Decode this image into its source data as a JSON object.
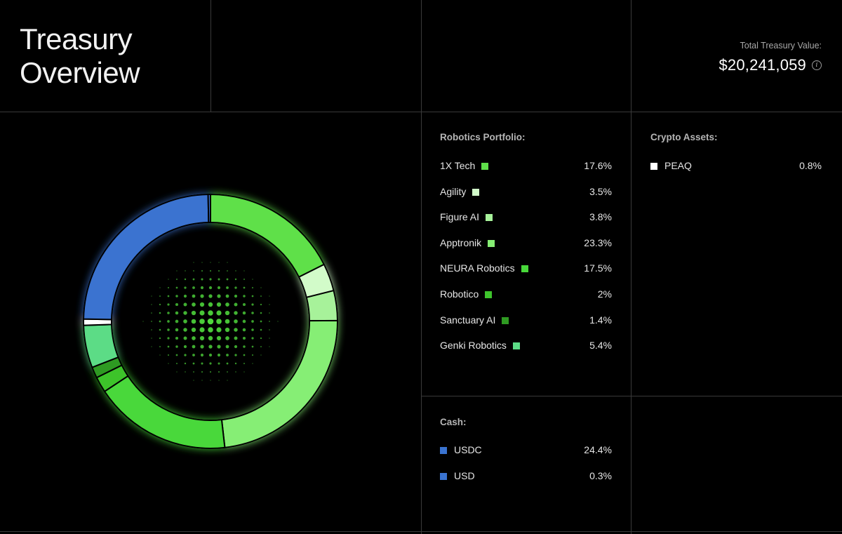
{
  "header": {
    "title_line1": "Treasury",
    "title_line2": "Overview",
    "total_label": "Total Treasury Value:",
    "total_value": "$20,241,059",
    "info_icon": "info-icon"
  },
  "robotics": {
    "title": "Robotics Portfolio:",
    "items": [
      {
        "name": "1X Tech",
        "pct": "17.6%",
        "color": "#5fe04a"
      },
      {
        "name": "Agility",
        "pct": "3.5%",
        "color": "#d2fbc9"
      },
      {
        "name": "Figure AI",
        "pct": "3.8%",
        "color": "#a7f29a"
      },
      {
        "name": "Apptronik",
        "pct": "23.3%",
        "color": "#86ee74"
      },
      {
        "name": "NEURA Robotics",
        "pct": "17.5%",
        "color": "#48d83a"
      },
      {
        "name": "Robotico",
        "pct": "2%",
        "color": "#3ec42c"
      },
      {
        "name": "Sanctuary AI",
        "pct": "1.4%",
        "color": "#2f9a22"
      },
      {
        "name": "Genki Robotics",
        "pct": "5.4%",
        "color": "#5cdc86"
      }
    ]
  },
  "crypto": {
    "title": "Crypto Assets:",
    "items": [
      {
        "name": "PEAQ",
        "pct": "0.8%",
        "color": "#ffffff"
      }
    ]
  },
  "cash": {
    "title": "Cash:",
    "items": [
      {
        "name": "USDC",
        "pct": "24.4%",
        "color": "#3a73d0"
      },
      {
        "name": "USD",
        "pct": "0.3%",
        "color": "#3a73d0"
      }
    ]
  },
  "chart_data": {
    "type": "pie",
    "categories": [
      "1X Tech",
      "Agility",
      "Figure AI",
      "Apptronik",
      "NEURA Robotics",
      "Robotico",
      "Sanctuary AI",
      "Genki Robotics",
      "PEAQ",
      "USDC",
      "USD"
    ],
    "values": [
      17.6,
      3.5,
      3.8,
      23.3,
      17.5,
      2,
      1.4,
      5.4,
      0.8,
      24.4,
      0.3
    ],
    "colors": [
      "#5fe04a",
      "#d2fbc9",
      "#a7f29a",
      "#86ee74",
      "#48d83a",
      "#3ec42c",
      "#2f9a22",
      "#5cdc86",
      "#ffffff",
      "#3a73d0",
      "#3a73d0"
    ],
    "style": "donut"
  }
}
